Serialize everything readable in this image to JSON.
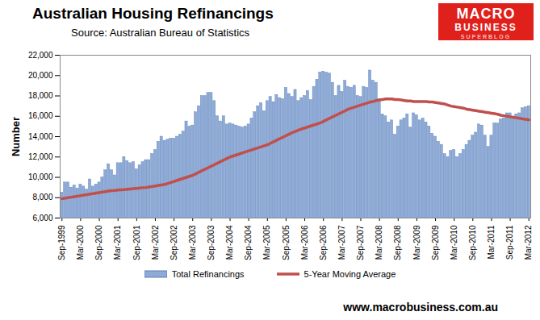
{
  "chart_data": {
    "type": "bar",
    "title": "Australian Housing Refinancings",
    "subtitle": "Source: Australian  Bureau of Statistics",
    "y_label": "Number",
    "logo": [
      "MACRO",
      "BUSINESS",
      "SUPERBLOG"
    ],
    "footer": "www.macrobusiness.com.au",
    "legend": "bottom",
    "grid": false,
    "ylim": [
      6000,
      22000
    ],
    "yticks": [
      {
        "value": 6000,
        "label": "6,000"
      },
      {
        "value": 8000,
        "label": "8,000"
      },
      {
        "value": 10000,
        "label": "10,000"
      },
      {
        "value": 12000,
        "label": "12,000"
      },
      {
        "value": 14000,
        "label": "14,000"
      },
      {
        "value": 16000,
        "label": "16,000"
      },
      {
        "value": 18000,
        "label": "18,000"
      },
      {
        "value": 20000,
        "label": "20,000"
      },
      {
        "value": 22000,
        "label": "22,000"
      }
    ],
    "categories": [
      "Sep-1999",
      null,
      null,
      null,
      null,
      null,
      "Mar-2000",
      null,
      null,
      null,
      null,
      null,
      "Sep-2000",
      null,
      null,
      null,
      null,
      null,
      "Mar-2001",
      null,
      null,
      null,
      null,
      null,
      "Sep-2001",
      null,
      null,
      null,
      null,
      null,
      "Mar-2002",
      null,
      null,
      null,
      null,
      null,
      "Sep-2002",
      null,
      null,
      null,
      null,
      null,
      "Mar-2003",
      null,
      null,
      null,
      null,
      null,
      "Sep-2003",
      null,
      null,
      null,
      null,
      null,
      "Mar-2004",
      null,
      null,
      null,
      null,
      null,
      "Sep-2004",
      null,
      null,
      null,
      null,
      null,
      "Mar-2005",
      null,
      null,
      null,
      null,
      null,
      "Sep-2005",
      null,
      null,
      null,
      null,
      null,
      "Mar-2006",
      null,
      null,
      null,
      null,
      null,
      "Sep-2006",
      null,
      null,
      null,
      null,
      null,
      "Mar-2007",
      null,
      null,
      null,
      null,
      null,
      "Sep-2007",
      null,
      null,
      null,
      null,
      null,
      "Mar-2008",
      null,
      null,
      null,
      null,
      null,
      "Sep-2008",
      null,
      null,
      null,
      null,
      null,
      "Mar-2009",
      null,
      null,
      null,
      null,
      null,
      "Sep-2009",
      null,
      null,
      null,
      null,
      null,
      "Mar-2010",
      null,
      null,
      null,
      null,
      null,
      "Sep-2010",
      null,
      null,
      null,
      null,
      null,
      "Mar-2011",
      null,
      null,
      null,
      null,
      null,
      "Sep-2011",
      null,
      null,
      null,
      null,
      null,
      "Mar-2012"
    ],
    "series": [
      {
        "name": "Total Refinancings",
        "type": "bar",
        "color": "#8eaad6",
        "values": [
          8500,
          9500,
          9500,
          9000,
          9200,
          8900,
          9300,
          9100,
          8800,
          9800,
          9100,
          9300,
          9500,
          10000,
          10700,
          11300,
          10700,
          10200,
          11400,
          11400,
          12000,
          11600,
          11400,
          11500,
          10800,
          11200,
          11500,
          11700,
          11700,
          12300,
          12700,
          13500,
          14000,
          13600,
          13700,
          13800,
          13800,
          14000,
          14200,
          14500,
          15500,
          15000,
          15100,
          16400,
          17000,
          18000,
          18000,
          18300,
          18300,
          17500,
          16000,
          15500,
          16000,
          15200,
          15300,
          15200,
          15100,
          15000,
          14900,
          15000,
          15200,
          15800,
          16400,
          17000,
          17300,
          16500,
          17500,
          17900,
          17400,
          18100,
          17800,
          17700,
          18800,
          18200,
          17900,
          18600,
          17500,
          17800,
          18000,
          18500,
          17600,
          18900,
          19600,
          20300,
          20400,
          20300,
          20200,
          19300,
          18000,
          19000,
          18400,
          19500,
          18900,
          18800,
          19000,
          18000,
          17900,
          18900,
          18800,
          20500,
          19500,
          19300,
          17700,
          16200,
          16000,
          15400,
          15600,
          14200,
          15000,
          15600,
          15800,
          16200,
          14900,
          16300,
          16100,
          15600,
          15800,
          15400,
          15000,
          14300,
          14000,
          13500,
          13200,
          12300,
          12000,
          12600,
          12700,
          12000,
          12300,
          12700,
          13200,
          13600,
          14100,
          14400,
          15200,
          15100,
          14100,
          13000,
          14100,
          15300,
          15300,
          15700,
          15800,
          16300,
          16300,
          15800,
          16200,
          16300,
          16800,
          16900,
          17000
        ]
      },
      {
        "name": "5-Year Moving Average",
        "type": "line",
        "color": "#c0504d",
        "values": [
          7900,
          7950,
          8000,
          8050,
          8100,
          8150,
          8200,
          8250,
          8300,
          8350,
          8400,
          8450,
          8500,
          8550,
          8600,
          8650,
          8700,
          8720,
          8750,
          8780,
          8800,
          8830,
          8860,
          8890,
          8920,
          8950,
          8980,
          9000,
          9050,
          9100,
          9150,
          9200,
          9250,
          9300,
          9400,
          9500,
          9600,
          9700,
          9800,
          9900,
          10000,
          10100,
          10200,
          10350,
          10500,
          10650,
          10800,
          10950,
          11100,
          11250,
          11400,
          11550,
          11700,
          11850,
          12000,
          12100,
          12200,
          12300,
          12400,
          12500,
          12600,
          12700,
          12800,
          12900,
          13000,
          13100,
          13200,
          13350,
          13500,
          13650,
          13800,
          13950,
          14100,
          14250,
          14400,
          14500,
          14650,
          14750,
          14850,
          14950,
          15050,
          15150,
          15250,
          15350,
          15500,
          15650,
          15800,
          15950,
          16100,
          16250,
          16400,
          16550,
          16700,
          16800,
          16900,
          17000,
          17100,
          17200,
          17300,
          17400,
          17450,
          17550,
          17600,
          17650,
          17700,
          17700,
          17700,
          17650,
          17650,
          17600,
          17550,
          17500,
          17500,
          17450,
          17450,
          17450,
          17450,
          17450,
          17400,
          17400,
          17350,
          17300,
          17250,
          17200,
          17100,
          17000,
          16950,
          16900,
          16850,
          16800,
          16700,
          16650,
          16600,
          16550,
          16500,
          16450,
          16400,
          16350,
          16300,
          16250,
          16200,
          16100,
          16050,
          16000,
          15950,
          15900,
          15850,
          15800,
          15750,
          15700,
          15650
        ]
      }
    ]
  }
}
